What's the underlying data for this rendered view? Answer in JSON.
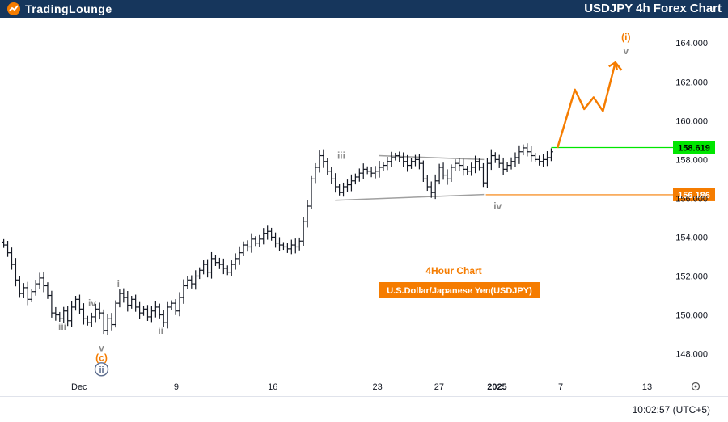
{
  "header": {
    "logo_text": "TradingLounge",
    "title": "USDJPY 4h Forex Chart"
  },
  "footer": {
    "clock": "10:02:57 (UTC+5)"
  },
  "colors": {
    "header_bg": "#16365c",
    "accent_orange": "#f57c00",
    "green_level": "#00e600",
    "wave_gray": "#8a8a8a",
    "wave_navy": "#5b6b8c"
  },
  "chart_data": {
    "type": "line",
    "subtype": "ohlc-bars",
    "title": "USDJPY 4h Forex Chart",
    "panel_title": "4Hour Chart",
    "panel_subtitle": "U.S.Dollar/Japanese Yen(USDJPY)",
    "ylim": [
      146.9,
      165.3
    ],
    "y_ticks": [
      "164.000",
      "162.000",
      "160.000",
      "158.000",
      "156.000",
      "154.000",
      "152.000",
      "150.000",
      "148.000"
    ],
    "x_ticks": [
      {
        "label": "Dec",
        "x": 0.127
      },
      {
        "label": "9",
        "x": 0.283
      },
      {
        "label": "16",
        "x": 0.438
      },
      {
        "label": "23",
        "x": 0.606
      },
      {
        "label": "27",
        "x": 0.705
      },
      {
        "label": "2025",
        "x": 0.798
      },
      {
        "label": "7",
        "x": 0.9
      },
      {
        "label": "13",
        "x": 1.039
      }
    ],
    "series": [
      {
        "values": [
          153.6,
          153.2,
          152.6,
          151.8,
          151.1,
          151.4,
          150.8,
          151.2,
          151.6,
          151.9,
          151.5,
          151.0,
          150.1,
          150.0,
          149.8,
          150.2,
          149.7,
          150.4,
          150.8,
          150.3,
          149.8,
          149.6,
          149.9,
          150.3,
          150.1,
          149.2,
          149.8,
          149.5,
          150.6,
          151.1,
          150.9,
          150.5,
          150.8,
          150.4,
          150.1,
          150.3,
          149.9,
          150.2,
          150.4,
          150.0,
          149.6,
          150.4,
          150.6,
          150.2,
          150.9,
          151.5,
          151.8,
          151.6,
          152.0,
          152.3,
          152.6,
          152.2,
          152.9,
          152.7,
          152.6,
          152.4,
          152.2,
          152.6,
          152.9,
          153.2,
          153.6,
          153.5,
          153.9,
          153.7,
          153.9,
          154.2,
          154.3,
          154.0,
          153.7,
          153.6,
          153.5,
          153.4,
          153.6,
          153.5,
          153.8,
          154.8,
          155.6,
          157.0,
          157.6,
          158.2,
          157.9,
          157.4,
          157.0,
          156.6,
          156.3,
          156.6,
          156.7,
          156.9,
          157.1,
          157.3,
          157.5,
          157.4,
          157.3,
          157.4,
          157.6,
          157.7,
          157.9,
          158.1,
          158.2,
          158.1,
          157.9,
          157.7,
          157.9,
          158.0,
          157.8,
          157.0,
          156.6,
          156.3,
          156.9,
          157.6,
          157.2,
          157.0,
          157.6,
          157.8,
          157.7,
          157.5,
          157.4,
          157.6,
          157.9,
          157.6,
          156.8,
          157.8,
          158.2,
          158.0,
          157.8,
          157.5,
          157.7,
          157.9,
          158.1,
          158.4,
          158.6,
          158.4,
          158.2,
          158.0,
          157.9,
          158.0,
          158.1,
          158.4
        ],
        "x_range": [
          0.006,
          0.885
        ]
      },
      {
        "name": "",
        "values": [
          158.6,
          161.6,
          160.6,
          161.2,
          160.5,
          163.0,
          162.6
        ],
        "x": [
          0.895,
          0.923,
          0.938,
          0.953,
          0.968,
          0.988,
          0.998
        ]
      }
    ],
    "levels": [
      {
        "label": "158.619",
        "value": 158.619,
        "color": "#00e600",
        "x_start": 0.885
      },
      {
        "label": "156.186",
        "value": 156.186,
        "color": "#f57c00",
        "x_start": 0.78
      }
    ],
    "triangle": [
      {
        "x": [
          0.608,
          0.777
        ],
        "y": [
          158.2,
          158.0
        ]
      },
      {
        "x": [
          0.538,
          0.777
        ],
        "y": [
          155.9,
          156.2
        ]
      }
    ],
    "wave_labels": [
      {
        "text": "iii",
        "x": 0.1,
        "y": 149.4,
        "color": "#8a8a8a",
        "style": "plain"
      },
      {
        "text": "iv",
        "x": 0.148,
        "y": 150.6,
        "color": "#8a8a8a",
        "style": "plain"
      },
      {
        "text": "v",
        "x": 0.163,
        "y": 148.3,
        "color": "#8a8a8a",
        "style": "plain"
      },
      {
        "text": "(c)",
        "x": 0.163,
        "y": 147.8,
        "color": "#f57c00",
        "style": "plain"
      },
      {
        "text": "ii",
        "x": 0.163,
        "y": 147.2,
        "color": "#5b6b8c",
        "style": "circle"
      },
      {
        "text": "i",
        "x": 0.19,
        "y": 151.6,
        "color": "#8a8a8a",
        "style": "plain"
      },
      {
        "text": "ii",
        "x": 0.258,
        "y": 149.2,
        "color": "#8a8a8a",
        "style": "plain"
      },
      {
        "text": "iii",
        "x": 0.548,
        "y": 158.2,
        "color": "#8a8a8a",
        "style": "plain"
      },
      {
        "text": "iv",
        "x": 0.799,
        "y": 155.6,
        "color": "#8a8a8a",
        "style": "plain"
      },
      {
        "text": "v",
        "x": 1.005,
        "y": 163.6,
        "color": "#8a8a8a",
        "style": "plain"
      },
      {
        "text": "(i)",
        "x": 1.005,
        "y": 164.3,
        "color": "#f57c00",
        "style": "plain"
      }
    ]
  }
}
